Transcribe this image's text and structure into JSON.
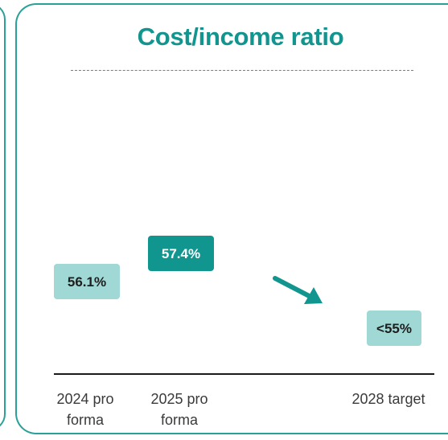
{
  "chart_data": {
    "type": "bar",
    "title": "Cost/income ratio",
    "categories": [
      [
        "2024 pro",
        "forma"
      ],
      [
        "2025 pro",
        "forma"
      ],
      [
        "2028 target"
      ]
    ],
    "values": [
      56.1,
      57.4,
      55
    ],
    "value_labels": [
      "56.1%",
      "57.4%",
      "<55%"
    ],
    "unit": "%",
    "trend": "down",
    "colors": {
      "accent": "#11958e",
      "light_box": "#9fd8d4",
      "dark_box": "#10958f",
      "label_dark": "#1e1e1e",
      "label_light": "#ffffff",
      "axis": "#1a1a1a",
      "border": "#2aa198"
    }
  }
}
